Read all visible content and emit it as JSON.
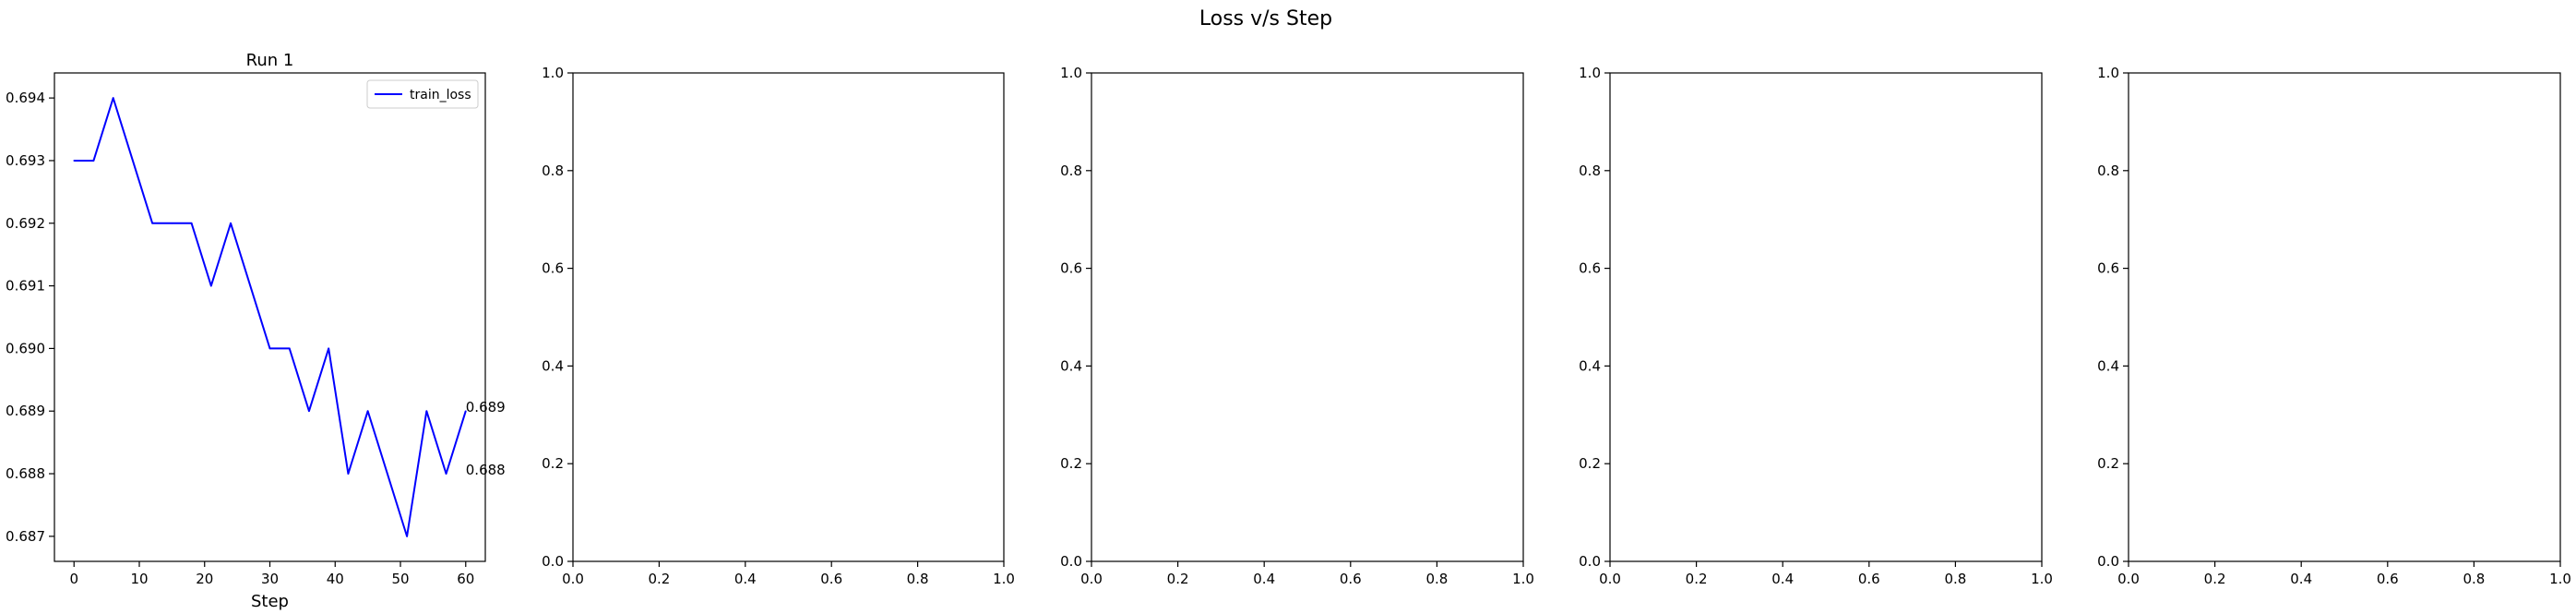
{
  "figure": {
    "title": "Loss v/s Step"
  },
  "chart_data": [
    {
      "type": "line",
      "title": "Run 1",
      "xlabel": "Step",
      "ylabel": "",
      "xlim": [
        -3,
        63
      ],
      "ylim": [
        0.6866,
        0.6944
      ],
      "xticks": [
        0,
        10,
        20,
        30,
        40,
        50,
        60
      ],
      "xtick_labels": [
        "0",
        "10",
        "20",
        "30",
        "40",
        "50",
        "60"
      ],
      "yticks": [
        0.687,
        0.688,
        0.689,
        0.69,
        0.691,
        0.692,
        0.693,
        0.694
      ],
      "ytick_labels": [
        "0.687",
        "0.688",
        "0.689",
        "0.690",
        "0.691",
        "0.692",
        "0.693",
        "0.694"
      ],
      "grid": false,
      "legend": "top-right",
      "series": [
        {
          "name": "train_loss",
          "color": "#0000ff",
          "x": [
            0,
            3,
            6,
            9,
            12,
            15,
            18,
            21,
            24,
            27,
            30,
            33,
            36,
            39,
            42,
            45,
            48,
            51,
            54,
            57,
            60
          ],
          "y": [
            0.693,
            0.693,
            0.694,
            0.693,
            0.692,
            0.692,
            0.692,
            0.691,
            0.692,
            0.691,
            0.69,
            0.69,
            0.689,
            0.69,
            0.688,
            0.689,
            0.688,
            0.687,
            0.689,
            0.688,
            0.689
          ]
        }
      ],
      "annotations": [
        {
          "text": "0.689",
          "x": 60,
          "y": 0.689
        },
        {
          "text": "0.688",
          "x": 60,
          "y": 0.688
        }
      ]
    },
    {
      "type": "line",
      "title": "",
      "xlabel": "",
      "ylabel": "",
      "xlim": [
        0,
        1
      ],
      "ylim": [
        0,
        1
      ],
      "xticks": [
        0,
        0.2,
        0.4,
        0.6,
        0.8,
        1.0
      ],
      "xtick_labels": [
        "0.0",
        "0.2",
        "0.4",
        "0.6",
        "0.8",
        "1.0"
      ],
      "yticks": [
        0,
        0.2,
        0.4,
        0.6,
        0.8,
        1.0
      ],
      "ytick_labels": [
        "0.0",
        "0.2",
        "0.4",
        "0.6",
        "0.8",
        "1.0"
      ],
      "grid": false,
      "series": []
    },
    {
      "type": "line",
      "title": "",
      "xlabel": "",
      "ylabel": "",
      "xlim": [
        0,
        1
      ],
      "ylim": [
        0,
        1
      ],
      "xticks": [
        0,
        0.2,
        0.4,
        0.6,
        0.8,
        1.0
      ],
      "xtick_labels": [
        "0.0",
        "0.2",
        "0.4",
        "0.6",
        "0.8",
        "1.0"
      ],
      "yticks": [
        0,
        0.2,
        0.4,
        0.6,
        0.8,
        1.0
      ],
      "ytick_labels": [
        "0.0",
        "0.2",
        "0.4",
        "0.6",
        "0.8",
        "1.0"
      ],
      "grid": false,
      "series": []
    },
    {
      "type": "line",
      "title": "",
      "xlabel": "",
      "ylabel": "",
      "xlim": [
        0,
        1
      ],
      "ylim": [
        0,
        1
      ],
      "xticks": [
        0,
        0.2,
        0.4,
        0.6,
        0.8,
        1.0
      ],
      "xtick_labels": [
        "0.0",
        "0.2",
        "0.4",
        "0.6",
        "0.8",
        "1.0"
      ],
      "yticks": [
        0,
        0.2,
        0.4,
        0.6,
        0.8,
        1.0
      ],
      "ytick_labels": [
        "0.0",
        "0.2",
        "0.4",
        "0.6",
        "0.8",
        "1.0"
      ],
      "grid": false,
      "series": []
    },
    {
      "type": "line",
      "title": "",
      "xlabel": "",
      "ylabel": "",
      "xlim": [
        0,
        1
      ],
      "ylim": [
        0,
        1
      ],
      "xticks": [
        0,
        0.2,
        0.4,
        0.6,
        0.8,
        1.0
      ],
      "xtick_labels": [
        "0.0",
        "0.2",
        "0.4",
        "0.6",
        "0.8",
        "1.0"
      ],
      "yticks": [
        0,
        0.2,
        0.4,
        0.6,
        0.8,
        1.0
      ],
      "ytick_labels": [
        "0.0",
        "0.2",
        "0.4",
        "0.6",
        "0.8",
        "1.0"
      ],
      "grid": false,
      "series": []
    }
  ]
}
